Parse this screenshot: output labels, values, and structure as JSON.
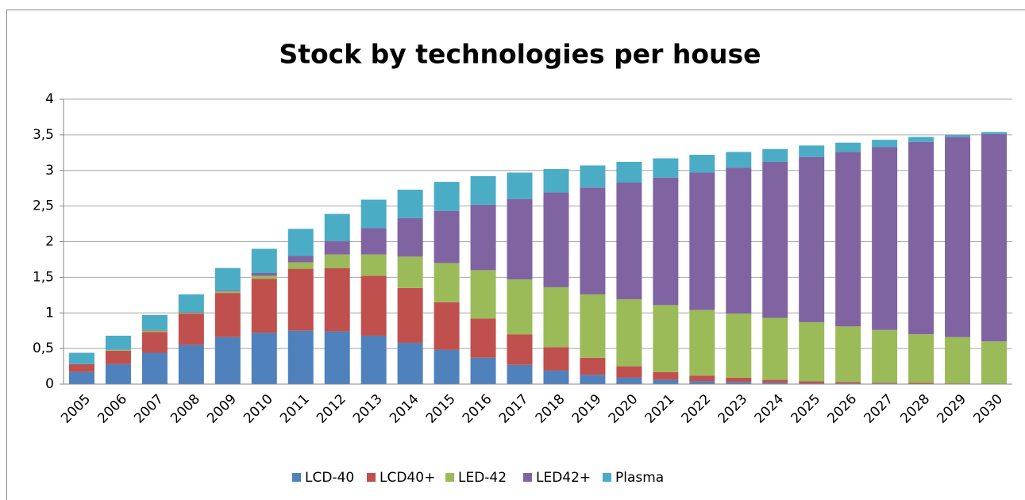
{
  "chart_data": {
    "type": "stacked_bar",
    "title": "Stock by technologies per house",
    "categories": [
      "2005",
      "2006",
      "2007",
      "2008",
      "2009",
      "2010",
      "2011",
      "2012",
      "2013",
      "2014",
      "2015",
      "2016",
      "2017",
      "2018",
      "2019",
      "2020",
      "2021",
      "2022",
      "2023",
      "2024",
      "2025",
      "2026",
      "2027",
      "2028",
      "2029",
      "2030"
    ],
    "series": [
      {
        "name": "LCD-40",
        "color": "#4f81bd",
        "values": [
          0.17,
          0.28,
          0.44,
          0.55,
          0.66,
          0.72,
          0.75,
          0.74,
          0.68,
          0.58,
          0.48,
          0.37,
          0.27,
          0.19,
          0.13,
          0.09,
          0.06,
          0.04,
          0.03,
          0.02,
          0.01,
          0.01,
          0.01,
          0,
          0,
          0
        ]
      },
      {
        "name": "LCD40+",
        "color": "#c0504d",
        "values": [
          0.11,
          0.19,
          0.29,
          0.44,
          0.62,
          0.76,
          0.87,
          0.89,
          0.84,
          0.77,
          0.67,
          0.55,
          0.43,
          0.33,
          0.24,
          0.16,
          0.11,
          0.08,
          0.06,
          0.04,
          0.03,
          0.02,
          0.01,
          0.02,
          0.01,
          0
        ]
      },
      {
        "name": "LED-42",
        "color": "#9bbb59",
        "values": [
          0,
          0.01,
          0.02,
          0.01,
          0.02,
          0.04,
          0.09,
          0.19,
          0.3,
          0.44,
          0.55,
          0.68,
          0.77,
          0.84,
          0.89,
          0.94,
          0.94,
          0.92,
          0.9,
          0.87,
          0.83,
          0.78,
          0.74,
          0.68,
          0.65,
          0.6
        ]
      },
      {
        "name": "LED42+",
        "color": "#8064a2",
        "values": [
          0,
          0,
          0.01,
          0.01,
          0.01,
          0.04,
          0.09,
          0.19,
          0.37,
          0.54,
          0.73,
          0.92,
          1.13,
          1.33,
          1.5,
          1.64,
          1.79,
          1.93,
          2.05,
          2.19,
          2.32,
          2.45,
          2.57,
          2.7,
          2.81,
          2.91
        ]
      },
      {
        "name": "Plasma",
        "color": "#4bacc6",
        "values": [
          0.16,
          0.2,
          0.21,
          0.25,
          0.32,
          0.34,
          0.38,
          0.38,
          0.4,
          0.4,
          0.41,
          0.4,
          0.37,
          0.33,
          0.31,
          0.29,
          0.27,
          0.25,
          0.22,
          0.18,
          0.16,
          0.13,
          0.1,
          0.07,
          0.03,
          0.03
        ]
      }
    ],
    "ylim": [
      0,
      4
    ],
    "yticks": [
      0,
      {
        "value": 0.5,
        "label": "0,5"
      },
      1,
      {
        "value": 1.5,
        "label": "1,5"
      },
      2,
      {
        "value": 2.5,
        "label": "2,5"
      },
      3,
      {
        "value": 3.5,
        "label": "3,5"
      },
      4
    ],
    "grid": true,
    "legend": "bottom"
  }
}
